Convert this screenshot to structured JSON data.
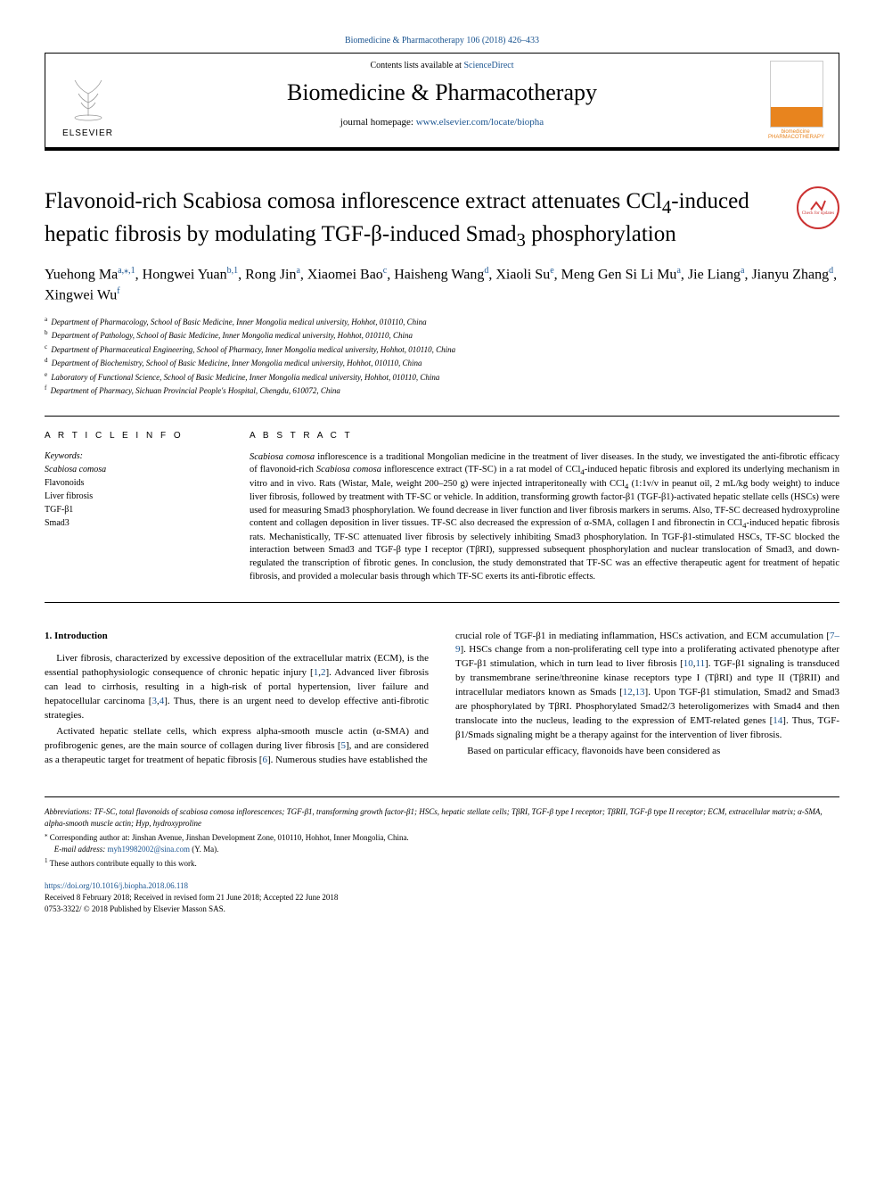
{
  "header_citation": "Biomedicine & Pharmacotherapy 106 (2018) 426–433",
  "contents_prefix": "Contents lists available at ",
  "contents_link": "ScienceDirect",
  "journal_name": "Biomedicine & Pharmacotherapy",
  "homepage_prefix": "journal homepage: ",
  "homepage_link": "www.elsevier.com/locate/biopha",
  "publisher_logo_text": "ELSEVIER",
  "cover_caption": "biomedicine PHARMACOTHERAPY",
  "crossmark_text": "Check for updates",
  "article_title_parts": {
    "pre": "Flavonoid-rich Scabiosa comosa inflorescence extract attenuates CCl",
    "sub1": "4",
    "mid1": "-induced hepatic fibrosis by modulating TGF-β-induced Smad",
    "sub2": "3",
    "post": " phosphorylation"
  },
  "authors": [
    {
      "name": "Yuehong Ma",
      "sup": "a,⁎,1"
    },
    {
      "name": "Hongwei Yuan",
      "sup": "b,1"
    },
    {
      "name": "Rong Jin",
      "sup": "a"
    },
    {
      "name": "Xiaomei Bao",
      "sup": "c"
    },
    {
      "name": "Haisheng Wang",
      "sup": "d"
    },
    {
      "name": "Xiaoli Su",
      "sup": "e"
    },
    {
      "name": "Meng Gen Si Li Mu",
      "sup": "a"
    },
    {
      "name": "Jie Liang",
      "sup": "a"
    },
    {
      "name": "Jianyu Zhang",
      "sup": "d"
    },
    {
      "name": "Xingwei Wu",
      "sup": "f"
    }
  ],
  "affiliations": [
    {
      "sup": "a",
      "text": "Department of Pharmacology, School of Basic Medicine, Inner Mongolia medical university, Hohhot, 010110, China"
    },
    {
      "sup": "b",
      "text": "Department of Pathology, School of Basic Medicine, Inner Mongolia medical university, Hohhot, 010110, China"
    },
    {
      "sup": "c",
      "text": "Department of Pharmaceutical Engineering, School of Pharmacy, Inner Mongolia medical university, Hohhot, 010110, China"
    },
    {
      "sup": "d",
      "text": "Department of Biochemistry, School of Basic Medicine, Inner Mongolia medical university, Hohhot, 010110, China"
    },
    {
      "sup": "e",
      "text": "Laboratory of Functional Science, School of Basic Medicine, Inner Mongolia medical university, Hohhot, 010110, China"
    },
    {
      "sup": "f",
      "text": "Department of Pharmacy, Sichuan Provincial People's Hospital, Chengdu, 610072, China"
    }
  ],
  "article_info_heading": "A R T I C L E  I N F O",
  "keywords_label": "Keywords:",
  "keywords": [
    "Scabiosa comosa",
    "Flavonoids",
    "Liver fibrosis",
    "TGF-β1",
    "Smad3"
  ],
  "abstract_heading": "A B S T R A C T",
  "abstract_text": "Scabiosa comosa inflorescence is a traditional Mongolian medicine in the treatment of liver diseases. In the study, we investigated the anti-fibrotic efficacy of flavonoid-rich Scabiosa comosa inflorescence extract (TF-SC) in a rat model of CCl4-induced hepatic fibrosis and explored its underlying mechanism in vitro and in vivo. Rats (Wistar, Male, weight 200–250 g) were injected intraperitoneally with CCl4 (1:1v/v in peanut oil, 2 mL/kg body weight) to induce liver fibrosis, followed by treatment with TF-SC or vehicle. In addition, transforming growth factor-β1 (TGF-β1)-activated hepatic stellate cells (HSCs) were used for measuring Smad3 phosphorylation. We found decrease in liver function and liver fibrosis markers in serums. Also, TF-SC decreased hydroxyproline content and collagen deposition in liver tissues. TF-SC also decreased the expression of α-SMA, collagen I and fibronectin in CCl4-induced hepatic fibrosis rats. Mechanistically, TF-SC attenuated liver fibrosis by selectively inhibiting Smad3 phosphorylation. In TGF-β1-stimulated HSCs, TF-SC blocked the interaction between Smad3 and TGF-β type I receptor (TβRI), suppressed subsequent phosphorylation and nuclear translocation of Smad3, and down-regulated the transcription of fibrotic genes. In conclusion, the study demonstrated that TF-SC was an effective therapeutic agent for treatment of hepatic fibrosis, and provided a molecular basis through which TF-SC exerts its anti-fibrotic effects.",
  "intro_heading": "1. Introduction",
  "intro_col1_p1_parts": [
    "Liver fibrosis, characterized by excessive deposition of the extracellular matrix (ECM), is the essential pathophysiologic consequence of chronic hepatic injury [",
    "1",
    ",",
    "2",
    "]. Advanced liver fibrosis can lead to cirrhosis, resulting in a high-risk of portal hypertension, liver failure and hepatocellular carcinoma [",
    "3",
    ",",
    "4",
    "]. Thus, there is an urgent need to develop effective anti-fibrotic strategies."
  ],
  "intro_col1_p2_parts": [
    "Activated hepatic stellate cells, which express alpha-smooth muscle actin (α-SMA) and profibrogenic genes, are the main source of collagen during liver fibrosis [",
    "5",
    "], and are considered as a therapeutic target for treatment of hepatic fibrosis [",
    "6",
    "]. Numerous studies have established the"
  ],
  "intro_col2_p1_parts": [
    "crucial role of TGF-β1 in mediating inflammation, HSCs activation, and ECM accumulation [",
    "7–9",
    "]. HSCs change from a non-proliferating cell type into a proliferating activated phenotype after TGF-β1 stimulation, which in turn lead to liver fibrosis [",
    "10",
    ",",
    "11",
    "]. TGF-β1 signaling is transduced by transmembrane serine/threonine kinase receptors type I (TβRI) and type II (TβRII) and intracellular mediators known as Smads [",
    "12",
    ",",
    "13",
    "]. Upon TGF-β1 stimulation, Smad2 and Smad3 are phosphorylated by TβRI. Phosphorylated Smad2/3 heteroligomerizes with Smad4 and then translocate into the nucleus, leading to the expression of EMT-related genes [",
    "14",
    "]. Thus, TGF-β1/Smads signaling might be a therapy against for the intervention of liver fibrosis."
  ],
  "intro_col2_p2": "Based on particular efficacy, flavonoids have been considered as",
  "footer": {
    "abbrev_label": "Abbreviations:",
    "abbrev_text": " TF-SC, total flavonoids of scabiosa comosa inflorescences; TGF-β1, transforming growth factor-β1; HSCs, hepatic stellate cells; TβRI, TGF-β type I receptor; TβRII, TGF-β type II receptor; ECM, extracellular matrix; α-SMA, alpha-smooth muscle actin; Hyp, hydroxyproline",
    "corr_sup": "⁎",
    "corr_text": " Corresponding author at: Jinshan Avenue, Jinshan Development Zone, 010110, Hohhot, Inner Mongolia, China.",
    "email_label": "E-mail address: ",
    "email": "myh19982002@sina.com",
    "email_suffix": " (Y. Ma).",
    "equal_sup": "1",
    "equal_text": " These authors contribute equally to this work.",
    "doi": "https://doi.org/10.1016/j.biopha.2018.06.118",
    "received": "Received 8 February 2018; Received in revised form 21 June 2018; Accepted 22 June 2018",
    "copyright": "0753-3322/ © 2018 Published by Elsevier Masson SAS."
  },
  "colors": {
    "link": "#1a5490",
    "accent": "#e8841e",
    "crossmark": "#c33"
  }
}
